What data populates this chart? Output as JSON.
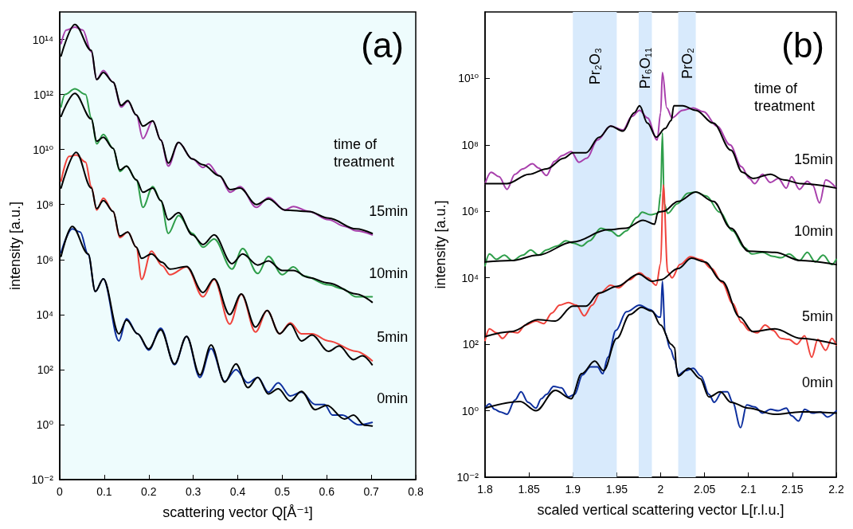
{
  "chart_data": [
    {
      "type": "line",
      "title": "(a)",
      "xlabel": "scattering vector Q[Å⁻¹]",
      "ylabel": "intensity [a.u.]",
      "log": true,
      "legend": false,
      "annotations": [
        "time of treatment"
      ],
      "xlim": [
        0,
        0.8
      ],
      "xticks": [
        0,
        0.1,
        0.2,
        0.3,
        0.4,
        0.5,
        0.6,
        0.7,
        0.8
      ],
      "ylim": [
        0.01,
        1000000000000000.0
      ],
      "yticks": [
        {
          "value": 0.01,
          "label": "10⁻²"
        },
        {
          "value": 1,
          "label": "10⁰"
        },
        {
          "value": 100,
          "label": "10²"
        },
        {
          "value": 10000.0,
          "label": "10⁴"
        },
        {
          "value": 1000000.0,
          "label": "10⁶"
        },
        {
          "value": 100000000.0,
          "label": "10⁸"
        },
        {
          "value": 10000000000.0,
          "label": "10¹⁰"
        },
        {
          "value": 1000000000000.0,
          "label": "10¹²"
        },
        {
          "value": 100000000000000.0,
          "label": "10¹⁴"
        }
      ],
      "series": [
        {
          "color": "#000000",
          "x": [
            0.003,
            0.034,
            0.071,
            0.083,
            0.098,
            0.12,
            0.138,
            0.153,
            0.172,
            0.187,
            0.209,
            0.227,
            0.244,
            0.267,
            0.298,
            0.322,
            0.359,
            0.383,
            0.405,
            0.442,
            0.469,
            0.506,
            0.56,
            0.604,
            0.666,
            0.702
          ],
          "values": [
            25000000000000.0,
            350000000000000.0,
            40000000000000.0,
            3500000000000.0,
            6300000000000.0,
            2800000000000.0,
            400000000000.0,
            600000000000.0,
            180000000000.0,
            71000000000.0,
            110000000000.0,
            22000000000.0,
            3200000000.0,
            18000000000.0,
            4500000000.0,
            2800000000.0,
            1100000000.0,
            350000000.0,
            400000000.0,
            100000000.0,
            160000000.0,
            63000000.0,
            56000000.0,
            32000000.0,
            13000000.0,
            8900000.0
          ]
        },
        {
          "color": "#000000",
          "x": [
            0.003,
            0.034,
            0.071,
            0.083,
            0.098,
            0.12,
            0.135,
            0.15,
            0.172,
            0.187,
            0.209,
            0.227,
            0.244,
            0.267,
            0.298,
            0.322,
            0.347,
            0.387,
            0.411,
            0.445,
            0.469,
            0.5,
            0.525,
            0.56,
            0.604,
            0.666,
            0.702
          ],
          "values": [
            160000000000.0,
            1100000000000.0,
            130000000000.0,
            20000000000.0,
            28000000000.0,
            11000000000.0,
            1800000000.0,
            2500000000.0,
            790000000.0,
            280000000.0,
            400000000.0,
            140000000.0,
            28000000.0,
            50000000.0,
            7900000.0,
            3500000.0,
            7900000.0,
            710000.0,
            1600000.0,
            630000.0,
            890000.0,
            400000.0,
            400000.0,
            220000.0,
            140000.0,
            56000.0,
            28000.0
          ]
        },
        {
          "color": "#000000",
          "x": [
            0.003,
            0.037,
            0.071,
            0.083,
            0.098,
            0.12,
            0.135,
            0.153,
            0.172,
            0.184,
            0.206,
            0.23,
            0.248,
            0.285,
            0.322,
            0.347,
            0.382,
            0.408,
            0.44,
            0.466,
            0.494,
            0.518,
            0.543,
            0.567,
            0.604,
            0.628,
            0.66,
            0.68,
            0.702
          ],
          "values": [
            400000000.0,
            7900000000.0,
            400000000.0,
            71000000.0,
            140000000.0,
            56000000.0,
            7100000.0,
            10000000.0,
            2800000.0,
            1100000.0,
            1600000.0,
            790000.0,
            450000.0,
            560000.0,
            63000.0,
            200000.0,
            10000.0,
            56000.0,
            3500.0,
            14000.0,
            2000.0,
            4500.0,
            1100.0,
            1800.0,
            460,
            720,
            230,
            320,
            150
          ]
        },
        {
          "color": "#000000",
          "x": [
            0.003,
            0.028,
            0.064,
            0.08,
            0.098,
            0.133,
            0.15,
            0.175,
            0.2,
            0.227,
            0.258,
            0.285,
            0.315,
            0.34,
            0.371,
            0.396,
            0.423,
            0.445,
            0.469,
            0.491,
            0.518,
            0.543,
            0.574,
            0.6,
            0.64,
            0.66,
            0.685,
            0.702
          ],
          "values": [
            1300000.0,
            16000000.0,
            1600000.0,
            69000.0,
            200000.0,
            2000.0,
            6300.0,
            2000.0,
            560,
            2800.0,
            160,
            1600.0,
            63,
            790,
            35,
            160,
            22,
            52,
            13,
            20,
            7.1,
            16,
            3.5,
            5,
            1.6,
            2.2,
            0.95,
            0.89
          ]
        },
        {
          "name": "15min",
          "color": "#a83fac",
          "x": [
            0.003,
            0.015,
            0.034,
            0.052,
            0.071,
            0.083,
            0.098,
            0.12,
            0.138,
            0.153,
            0.172,
            0.187,
            0.209,
            0.227,
            0.244,
            0.267,
            0.298,
            0.322,
            0.334,
            0.359,
            0.383,
            0.405,
            0.442,
            0.469,
            0.506,
            0.525,
            0.56,
            0.604,
            0.641,
            0.666,
            0.702
          ],
          "values": [
            71000000000000.0,
            220000000000000.0,
            280000000000000.0,
            220000000000000.0,
            35000000000000.0,
            3500000000000.0,
            7400000000000.0,
            2800000000000.0,
            350000000000.0,
            560000000000.0,
            180000000000.0,
            25000000000.0,
            110000000000.0,
            22000000000.0,
            2500000000.0,
            18000000000.0,
            4500000000.0,
            2200000000.0,
            3000000000.0,
            1100000000.0,
            280000000.0,
            450000000.0,
            79000000.0,
            180000000.0,
            63000000.0,
            85000000.0,
            56000000.0,
            28000000.0,
            16000000.0,
            11000000.0,
            7900000.0
          ]
        },
        {
          "name": "10min",
          "color": "#2e9e4a",
          "x": [
            0.003,
            0.012,
            0.034,
            0.058,
            0.071,
            0.083,
            0.098,
            0.12,
            0.135,
            0.15,
            0.172,
            0.187,
            0.209,
            0.227,
            0.244,
            0.267,
            0.298,
            0.322,
            0.347,
            0.387,
            0.411,
            0.445,
            0.469,
            0.5,
            0.525,
            0.549,
            0.604,
            0.635,
            0.666,
            0.702
          ],
          "values": [
            350000000000.0,
            1000000000000.0,
            1600000000000.0,
            1000000000000.0,
            140000000000.0,
            16000000000.0,
            35000000000.0,
            11000000000.0,
            1600000000.0,
            2500000000.0,
            790000000.0,
            79000000.0,
            450000000.0,
            140000000.0,
            8900000.0,
            40000000.0,
            8900000.0,
            2800000.0,
            5600000.0,
            450000.0,
            2500000.0,
            310000.0,
            1300000.0,
            280000.0,
            540000.0,
            250000.0,
            120000.0,
            87000.0,
            44000.0,
            44000.0
          ]
        },
        {
          "name": "5min",
          "color": "#f0433c",
          "x": [
            0.003,
            0.021,
            0.037,
            0.058,
            0.071,
            0.083,
            0.098,
            0.12,
            0.135,
            0.153,
            0.172,
            0.184,
            0.206,
            0.23,
            0.248,
            0.285,
            0.322,
            0.347,
            0.382,
            0.408,
            0.44,
            0.466,
            0.494,
            0.518,
            0.543,
            0.567,
            0.604,
            0.666,
            0.702
          ],
          "values": [
            710000000.0,
            5600000000.0,
            6300000000.0,
            3500000000.0,
            450000000.0,
            63000000.0,
            170000000.0,
            56000000.0,
            6300000.0,
            10000000.0,
            2800000.0,
            190000.0,
            2000000.0,
            600000.0,
            280000.0,
            540000.0,
            44000.0,
            190000.0,
            4500.0,
            55000.0,
            2300.0,
            14000.0,
            2000.0,
            5000.0,
            2000.0,
            2000.0,
            1100.0,
            460,
            210
          ]
        },
        {
          "name": "0min",
          "color": "#0d2f9e",
          "x": [
            0.003,
            0.028,
            0.046,
            0.064,
            0.08,
            0.098,
            0.133,
            0.15,
            0.175,
            0.2,
            0.227,
            0.258,
            0.285,
            0.315,
            0.34,
            0.371,
            0.396,
            0.423,
            0.445,
            0.469,
            0.491,
            0.518,
            0.543,
            0.574,
            0.595,
            0.613,
            0.635,
            0.672,
            0.702
          ],
          "values": [
            1800000.0,
            13000000.0,
            10000000.0,
            1500000.0,
            69000.0,
            200000.0,
            1100.0,
            7100.0,
            2000.0,
            510,
            3200.0,
            150,
            1600.0,
            52,
            580,
            37,
            100,
            33,
            52,
            15,
            33,
            11,
            15,
            5.4,
            5.4,
            2.2,
            2.2,
            0.98,
            1.2
          ]
        }
      ]
    },
    {
      "type": "line",
      "title": "(b)",
      "xlabel": "scaled vertical scattering vector L[r.l.u.]",
      "ylabel": "intensity [a.u.]",
      "log": true,
      "legend": false,
      "annotations": [
        "time of treatment"
      ],
      "xlim": [
        1.8,
        2.2
      ],
      "xticks": [
        1.8,
        1.85,
        1.9,
        1.95,
        2,
        2.05,
        2.1,
        2.15,
        2.2
      ],
      "ylim": [
        0.01,
        1000000000000.0
      ],
      "yticks": [
        {
          "value": 0.01,
          "label": "10⁻²"
        },
        {
          "value": 1,
          "label": "10⁰"
        },
        {
          "value": 100,
          "label": "10²"
        },
        {
          "value": 10000.0,
          "label": "10⁴"
        },
        {
          "value": 1000000.0,
          "label": "10⁶"
        },
        {
          "value": 100000000.0,
          "label": "10⁸"
        },
        {
          "value": 10000000000.0,
          "label": "10¹⁰"
        }
      ],
      "bands": [
        {
          "axis": "x",
          "from": 1.9,
          "to": 1.95,
          "label": "Pr₂O₃",
          "color": "#d8eafc"
        },
        {
          "axis": "x",
          "from": 1.975,
          "to": 1.99,
          "label": "Pr₆O₁₁",
          "color": "#d8eafc"
        },
        {
          "axis": "x",
          "from": 2.02,
          "to": 2.04,
          "label": "PrO₂",
          "color": "#d8eafc"
        }
      ],
      "series": [
        {
          "color": "#000000",
          "x": [
            1.8,
            1.825,
            1.85,
            1.87,
            1.89,
            1.9,
            1.915,
            1.93,
            1.943,
            1.957,
            1.97,
            1.976,
            1.985,
            1.995,
            2.005,
            2.012,
            2.015,
            2.025,
            2.04,
            2.06,
            2.08,
            2.093,
            2.105,
            2.125,
            2.14,
            2.16,
            2.2
          ],
          "values": [
            6800000.0,
            6800000.0,
            13000000.0,
            19000000.0,
            40000000.0,
            58000000.0,
            58000000.0,
            170000000.0,
            370000000.0,
            260000000.0,
            930000000.0,
            1500000000.0,
            450000000.0,
            170000000.0,
            310000000.0,
            540000000.0,
            1500000000.0,
            1500000000.0,
            1100000000.0,
            450000000.0,
            69000000.0,
            15000000.0,
            9800000.0,
            13000000.0,
            8900000.0,
            6800000.0,
            5000000.0
          ]
        },
        {
          "color": "#000000",
          "x": [
            1.8,
            1.83,
            1.86,
            1.9,
            1.94,
            1.96,
            1.98,
            1.993,
            1.997,
            2.003,
            2.02,
            2.04,
            2.06,
            2.08,
            2.1,
            2.13,
            2.16,
            2.2
          ],
          "values": [
            30000.0,
            33000.0,
            48000.0,
            120000.0,
            280000.0,
            310000.0,
            540000.0,
            410000.0,
            950000.0,
            1000000.0,
            2000000.0,
            3800000.0,
            2000000.0,
            310000.0,
            63000.0,
            58000.0,
            33000.0,
            25000.0
          ]
        },
        {
          "color": "#000000",
          "x": [
            1.8,
            1.83,
            1.86,
            1.88,
            1.9,
            1.915,
            1.93,
            1.95,
            1.975,
            1.99,
            2.0,
            2.02,
            2.035,
            2.05,
            2.07,
            2.09,
            2.105,
            2.13,
            2.16,
            2.2
          ],
          "values": [
            170,
            240,
            550,
            500,
            1400.0,
            1400.0,
            3500.0,
            5500.0,
            13000.0,
            7900.0,
            8700.0,
            19000.0,
            39000.0,
            30000.0,
            7900.0,
            660,
            240,
            290,
            150,
            100
          ]
        },
        {
          "color": "#000000",
          "x": [
            1.8,
            1.84,
            1.858,
            1.88,
            1.898,
            1.91,
            1.925,
            1.935,
            1.95,
            1.965,
            1.978,
            1.99,
            2.0,
            2.012,
            2.016,
            2.018,
            2.02,
            2.032,
            2.045,
            2.055,
            2.068,
            2.08,
            2.1,
            2.13,
            2.16,
            2.2
          ],
          "values": [
            1.2,
            1.9,
            1.0,
            4.1,
            2.3,
            13,
            31,
            16,
            150,
            790,
            1300.0,
            1000.0,
            380,
            100,
            79,
            19,
            11,
            19,
            9.3,
            2.6,
            3.7,
            1.8,
            1.2,
            0.78,
            0.93,
            0.85
          ]
        },
        {
          "name": "15min",
          "color": "#a83fac",
          "x": [
            1.8,
            1.807,
            1.816,
            1.825,
            1.834,
            1.843,
            1.854,
            1.861,
            1.87,
            1.879,
            1.888,
            1.898,
            1.907,
            1.916,
            1.928,
            1.943,
            1.957,
            1.967,
            1.976,
            1.985,
            1.996,
            2.0,
            2.002,
            2.007,
            2.013,
            2.025,
            2.037,
            2.049,
            2.064,
            2.079,
            2.092,
            2.101,
            2.107,
            2.116,
            2.125,
            2.134,
            2.143,
            2.149,
            2.158,
            2.167,
            2.173,
            2.181,
            2.188,
            2.2
          ],
          "values": [
            6800000.0,
            15000000.0,
            11000000.0,
            4600000.0,
            13000000.0,
            19000000.0,
            27000000.0,
            20000000.0,
            12000000.0,
            32000000.0,
            48000000.0,
            63000000.0,
            30000000.0,
            40000000.0,
            140000000.0,
            370000000.0,
            280000000.0,
            710000000.0,
            1100000000.0,
            650000000.0,
            140000000.0,
            930000000.0,
            15000000000.0,
            1300000000.0,
            650000000.0,
            1100000000.0,
            1300000000.0,
            1000000000.0,
            370000000.0,
            100000000.0,
            22000000.0,
            9800000.0,
            6800000.0,
            13000000.0,
            7400000.0,
            9800000.0,
            5000000.0,
            11000000.0,
            4600000.0,
            8100000.0,
            6200000.0,
            1800000.0,
            8900000.0,
            5000000.0
          ]
        },
        {
          "name": "10min",
          "color": "#2e9e4a",
          "x": [
            1.8,
            1.805,
            1.813,
            1.822,
            1.831,
            1.843,
            1.852,
            1.861,
            1.87,
            1.882,
            1.892,
            1.901,
            1.91,
            1.919,
            1.932,
            1.943,
            1.952,
            1.961,
            1.973,
            1.979,
            1.988,
            1.997,
            2.0,
            2.002,
            2.004,
            2.008,
            2.019,
            2.031,
            2.04,
            2.052,
            2.067,
            2.082,
            2.095,
            2.104,
            2.116,
            2.128,
            2.137,
            2.146,
            2.158,
            2.167,
            2.176,
            2.185,
            2.195,
            2.2
          ],
          "values": [
            23000.0,
            52000.0,
            36000.0,
            48000.0,
            33000.0,
            48000.0,
            69000.0,
            48000.0,
            69000.0,
            91000.0,
            130000.0,
            110000.0,
            91000.0,
            130000.0,
            310000.0,
            260000.0,
            180000.0,
            260000.0,
            660000.0,
            950000.0,
            790000.0,
            870000.0,
            3500000.0,
            230000000.0,
            1700000.0,
            870000.0,
            1700000.0,
            3500000.0,
            3800000.0,
            2900000.0,
            950000.0,
            260000.0,
            83000.0,
            52000.0,
            58000.0,
            44000.0,
            40000.0,
            52000.0,
            33000.0,
            58000.0,
            30000.0,
            48000.0,
            25000.0,
            36000.0
          ]
        },
        {
          "name": "5min",
          "color": "#f0433c",
          "x": [
            1.8,
            1.805,
            1.813,
            1.82,
            1.828,
            1.837,
            1.846,
            1.858,
            1.867,
            1.876,
            1.885,
            1.895,
            1.904,
            1.913,
            1.922,
            1.931,
            1.943,
            1.952,
            1.964,
            1.976,
            1.985,
            1.995,
            2.0,
            2.003,
            2.008,
            2.013,
            2.022,
            2.034,
            2.046,
            2.058,
            2.07,
            2.082,
            2.092,
            2.101,
            2.11,
            2.119,
            2.128,
            2.137,
            2.146,
            2.155,
            2.164,
            2.172,
            2.179,
            2.188,
            2.195,
            2.2
          ],
          "values": [
            130,
            290,
            220,
            150,
            240,
            220,
            380,
            500,
            420,
            870,
            1500.0,
            1800.0,
            1500.0,
            720,
            1500.0,
            3500.0,
            6000.0,
            5000.0,
            8700.0,
            14000.0,
            10000.0,
            6000.0,
            27000.0,
            6300000.0,
            15000.0,
            10000.0,
            25000.0,
            43000.0,
            35000.0,
            19000.0,
            7200.0,
            1700.0,
            460,
            260,
            220,
            380,
            260,
            150,
            140,
            100,
            180,
            41,
            140,
            66,
            150,
            95
          ]
        },
        {
          "name": "0min",
          "color": "#0d2f9e",
          "x": [
            1.8,
            1.805,
            1.811,
            1.817,
            1.825,
            1.834,
            1.841,
            1.849,
            1.858,
            1.864,
            1.87,
            1.878,
            1.887,
            1.895,
            1.902,
            1.911,
            1.92,
            1.928,
            1.934,
            1.94,
            1.949,
            1.961,
            1.976,
            1.988,
            1.998,
            2.0,
            2.002,
            2.005,
            2.011,
            2.016,
            2.02,
            2.028,
            2.037,
            2.046,
            2.055,
            2.061,
            2.07,
            2.076,
            2.082,
            2.091,
            2.098,
            2.107,
            2.116,
            2.125,
            2.134,
            2.143,
            2.149,
            2.157,
            2.164,
            2.173,
            2.182,
            2.19,
            2.2
          ],
          "values": [
            1.2,
            1.6,
            1.1,
            0.93,
            0.78,
            2.1,
            3.7,
            1.8,
            1.2,
            2.3,
            3.1,
            5.4,
            4.9,
            2.6,
            3.1,
            12,
            21,
            21,
            13,
            41,
            260,
            950,
            1500.0,
            1100.0,
            660,
            660,
            7900.0,
            220,
            72,
            34,
            12,
            16,
            19,
            11,
            3.1,
            1.8,
            3.7,
            3.7,
            1.8,
            0.31,
            1.5,
            1.3,
            0.85,
            1.1,
            1.0,
            1.2,
            0.71,
            0.49,
            1.1,
            0.85,
            0.93,
            0.65,
            1.0
          ]
        }
      ]
    }
  ]
}
